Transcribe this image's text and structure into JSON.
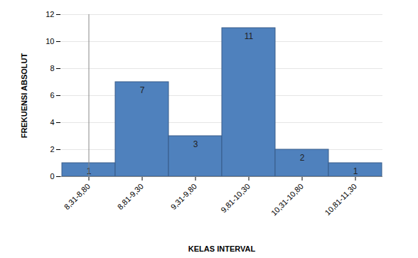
{
  "chart_data": {
    "type": "bar",
    "categories": [
      "8,31-8,80",
      "8,81-9,30",
      "9,31-9,80",
      "9,81-10,30",
      "10,31-10,80",
      "10,81-11,30"
    ],
    "values": [
      1,
      7,
      3,
      11,
      2,
      1
    ],
    "x_label": "KELAS INTERVAL",
    "y_label": "FREKUENSI ABSOLUT",
    "color": "#4f81bd",
    "ylim": [
      0,
      12
    ],
    "yticks": [
      0,
      2,
      4,
      6,
      8,
      10,
      12
    ],
    "grid": true,
    "data_labels": true
  }
}
